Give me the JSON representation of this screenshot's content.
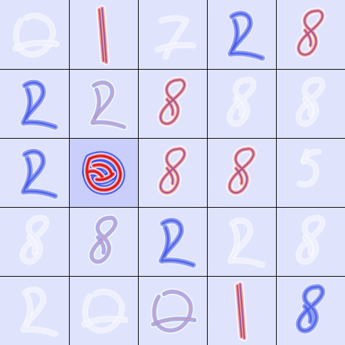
{
  "grid": {
    "rows": 5,
    "cols": 5,
    "background_color": "#d6dbfb",
    "gridline_color": "#000000",
    "colormap": {
      "negative": "#2d3fe0",
      "neutral": "#dfe3fb",
      "positive": "#e02020",
      "weak_positive": "#ffffff"
    },
    "cells": [
      {
        "glyph": "zero",
        "style": "faint"
      },
      {
        "glyph": "one",
        "style": "strong"
      },
      {
        "glyph": "seven",
        "style": "faint"
      },
      {
        "glyph": "two",
        "style": "blue"
      },
      {
        "glyph": "eight",
        "style": "strong"
      },
      {
        "glyph": "two",
        "style": "blue"
      },
      {
        "glyph": "two",
        "style": "mixed"
      },
      {
        "glyph": "eight",
        "style": "strong"
      },
      {
        "glyph": "eight",
        "style": "faint"
      },
      {
        "glyph": "eight",
        "style": "faint"
      },
      {
        "glyph": "two",
        "style": "blue"
      },
      {
        "glyph": "blob",
        "style": "vivid"
      },
      {
        "glyph": "eight",
        "style": "strong"
      },
      {
        "glyph": "eight",
        "style": "strong"
      },
      {
        "glyph": "five",
        "style": "faint"
      },
      {
        "glyph": "eight",
        "style": "faint"
      },
      {
        "glyph": "eight",
        "style": "mixed"
      },
      {
        "glyph": "two",
        "style": "blue"
      },
      {
        "glyph": "two",
        "style": "faint"
      },
      {
        "glyph": "eight",
        "style": "faint"
      },
      {
        "glyph": "two",
        "style": "faint"
      },
      {
        "glyph": "zero",
        "style": "faint"
      },
      {
        "glyph": "zero",
        "style": "mixed"
      },
      {
        "glyph": "one",
        "style": "strong"
      },
      {
        "glyph": "eight",
        "style": "blue"
      }
    ]
  }
}
